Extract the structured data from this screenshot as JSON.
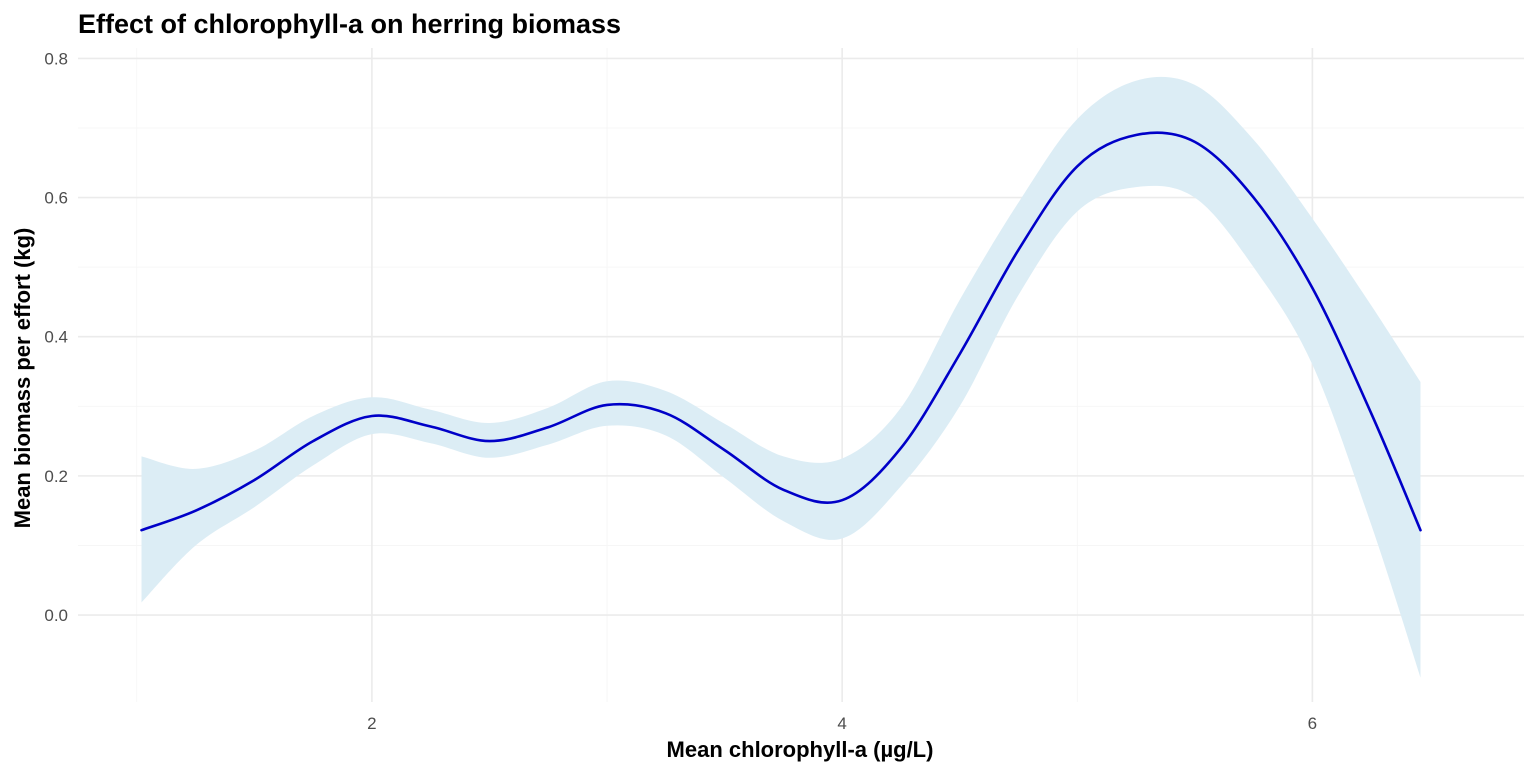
{
  "chart_data": {
    "type": "line",
    "title": "Effect of chlorophyll-a on herring biomass",
    "xlabel": "Mean chlorophyll-a (µg/L)",
    "ylabel": "Mean biomass per effort (kg)",
    "xlim": [
      0.75,
      6.9
    ],
    "ylim": [
      -0.125,
      0.815
    ],
    "x_ticks": [
      2,
      4,
      6
    ],
    "x_tick_labels": [
      "2",
      "4",
      "6"
    ],
    "y_ticks": [
      0.0,
      0.2,
      0.4,
      0.6,
      0.8
    ],
    "y_tick_labels": [
      "0.0",
      "0.2",
      "0.4",
      "0.6",
      "0.8"
    ],
    "grid": true,
    "legend": "none",
    "colors": {
      "line": "#0000c8",
      "ribbon": "#dcedf5",
      "grid": "#ebebeb",
      "background": "#ffffff"
    },
    "series": [
      {
        "x": [
          1.02,
          1.25,
          1.5,
          1.75,
          2.0,
          2.25,
          2.5,
          2.75,
          3.0,
          3.25,
          3.5,
          3.75,
          4.0,
          4.25,
          4.5,
          4.75,
          5.0,
          5.25,
          5.5,
          5.75,
          6.0,
          6.25,
          6.46
        ],
        "y": [
          0.122,
          0.15,
          0.194,
          0.25,
          0.286,
          0.271,
          0.25,
          0.27,
          0.302,
          0.29,
          0.237,
          0.18,
          0.165,
          0.24,
          0.375,
          0.525,
          0.645,
          0.69,
          0.68,
          0.6,
          0.47,
          0.29,
          0.122
        ],
        "lower": [
          0.018,
          0.1,
          0.155,
          0.215,
          0.26,
          0.247,
          0.226,
          0.245,
          0.272,
          0.258,
          0.197,
          0.135,
          0.11,
          0.185,
          0.3,
          0.46,
          0.58,
          0.615,
          0.6,
          0.5,
          0.36,
          0.13,
          -0.09
        ],
        "upper": [
          0.228,
          0.21,
          0.236,
          0.286,
          0.313,
          0.295,
          0.276,
          0.298,
          0.336,
          0.322,
          0.275,
          0.228,
          0.225,
          0.298,
          0.453,
          0.593,
          0.713,
          0.768,
          0.762,
          0.683,
          0.57,
          0.445,
          0.335
        ]
      }
    ]
  }
}
